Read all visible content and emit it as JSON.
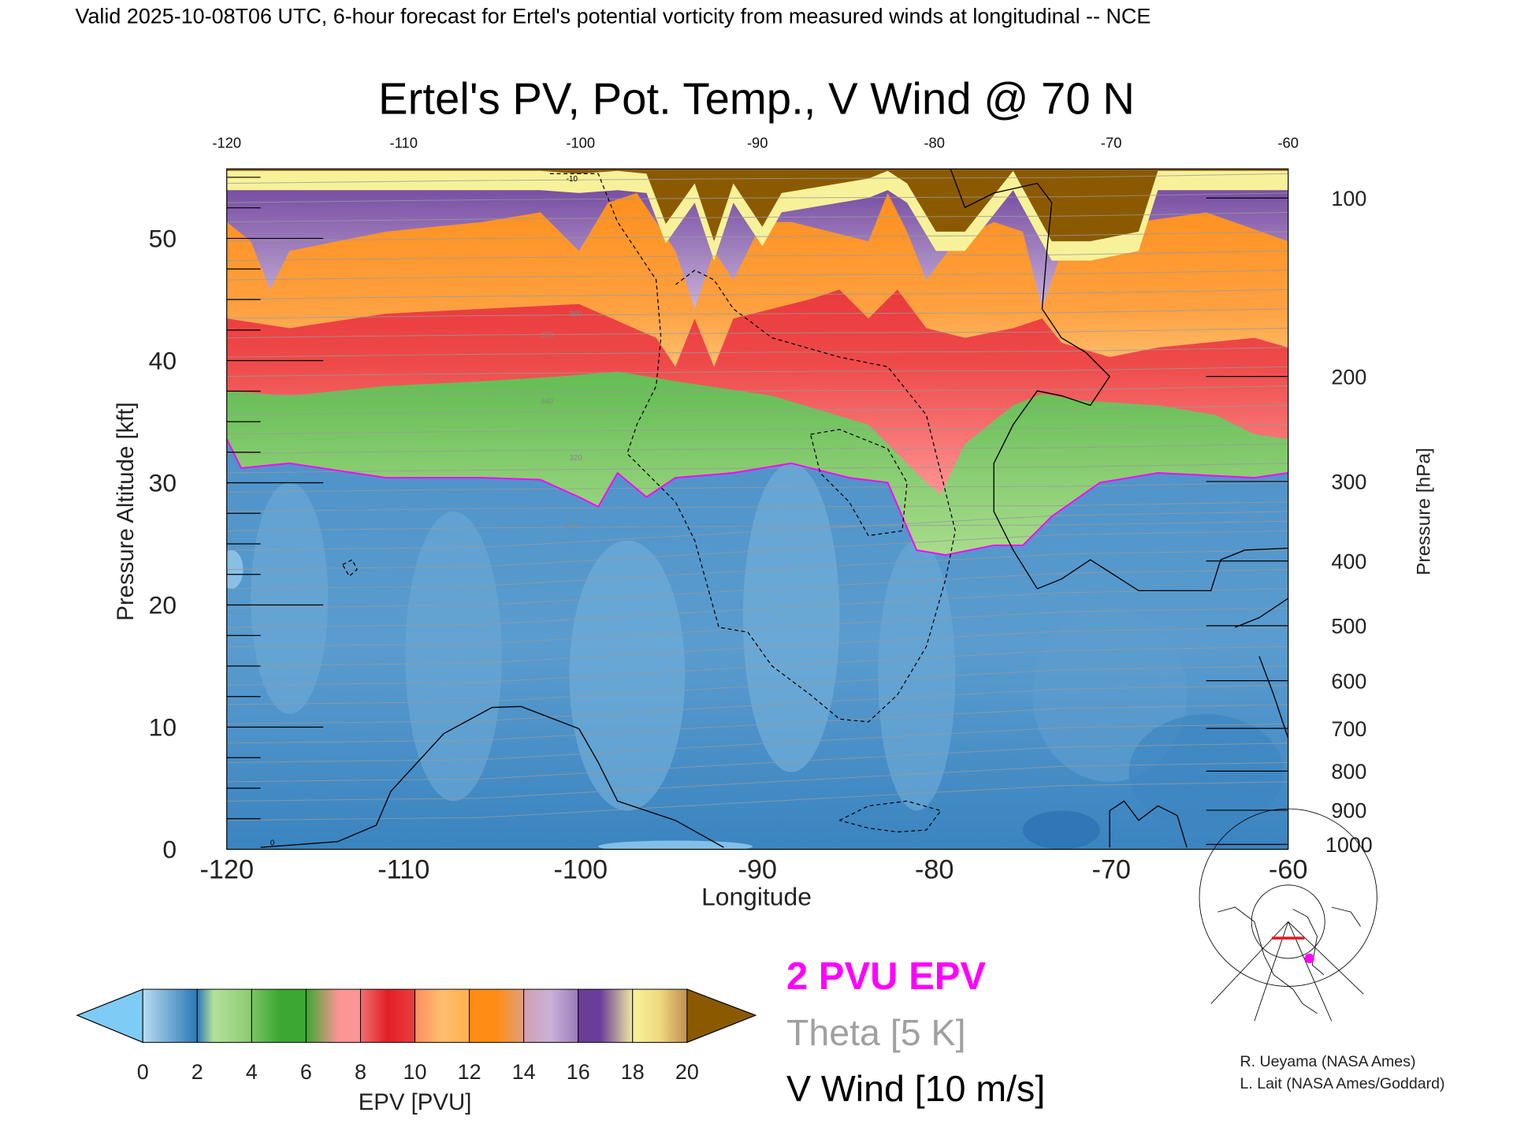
{
  "header": {
    "subtitle": "Valid 2025-10-08T06 UTC, 6-hour forecast for Ertel's potential vorticity from measured winds at longitudinal -- NCE"
  },
  "chart_data": {
    "type": "heatmap",
    "title": "Ertel's PV, Pot. Temp., V Wind @ 70 N",
    "xlabel": "Longitude",
    "ylabel": "Pressure Altitude [kft]",
    "y2label": "Pressure [hPa]",
    "xlim": [
      -120,
      -60
    ],
    "ylim": [
      0,
      55
    ],
    "x_ticks": [
      "-120",
      "-110",
      "-100",
      "-90",
      "-80",
      "-70",
      "-60"
    ],
    "top_x_ticks": [
      "-120",
      "-110",
      "-100",
      "-90",
      "-80",
      "-70",
      "-60"
    ],
    "y_ticks": [
      {
        "value": 0,
        "label": "0"
      },
      {
        "value": 10,
        "label": "10"
      },
      {
        "value": 20,
        "label": "20"
      },
      {
        "value": 30,
        "label": "30"
      },
      {
        "value": 40,
        "label": "40"
      },
      {
        "value": 50,
        "label": "50"
      }
    ],
    "y2_ticks": [
      {
        "kft": 53.3,
        "label": "100"
      },
      {
        "kft": 38.7,
        "label": "200"
      },
      {
        "kft": 30.1,
        "label": "300"
      },
      {
        "kft": 23.6,
        "label": "400"
      },
      {
        "kft": 18.3,
        "label": "500"
      },
      {
        "kft": 13.8,
        "label": "600"
      },
      {
        "kft": 9.9,
        "label": "700"
      },
      {
        "kft": 6.4,
        "label": "800"
      },
      {
        "kft": 3.2,
        "label": "900"
      },
      {
        "kft": 0.4,
        "label": "1000"
      }
    ],
    "contour_labels": [
      "-10",
      "0",
      "370",
      "360",
      "340",
      "320",
      "310"
    ],
    "colorbar": {
      "label": "EPV [PVU]",
      "ticks": [
        "0",
        "2",
        "4",
        "6",
        "8",
        "10",
        "12",
        "14",
        "16",
        "18",
        "20"
      ],
      "colors": [
        "#7ecbf5",
        "#2a78b5",
        "#a8dc8c",
        "#3ca832",
        "#ff9494",
        "#e41e26",
        "#ffbf6e",
        "#ff8c14",
        "#c9b1d8",
        "#6a3d9a",
        "#f7f29a",
        "#8b5a00"
      ]
    },
    "legend": [
      {
        "label": "2 PVU EPV",
        "color": "#ff00ff"
      },
      {
        "label": "Theta [5 K]",
        "color": "#a0a0a0"
      },
      {
        "label": "V Wind [10 m/s]",
        "color": "#000000"
      }
    ]
  },
  "credits": {
    "line1": "R. Ueyama (NASA Ames)",
    "line2": "L. Lait (NASA Ames/Goddard)"
  }
}
